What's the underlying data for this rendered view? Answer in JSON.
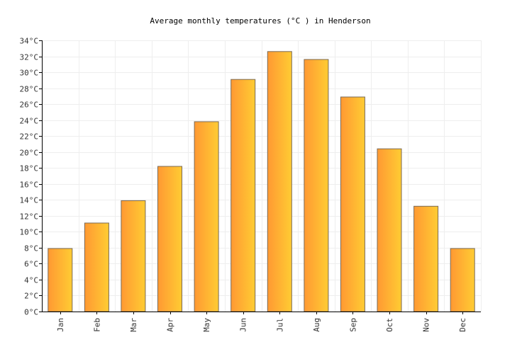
{
  "chart_data": {
    "type": "bar",
    "title": "Average monthly temperatures (°C ) in Henderson",
    "categories": [
      "Jan",
      "Feb",
      "Mar",
      "Apr",
      "May",
      "Jun",
      "Jul",
      "Aug",
      "Sep",
      "Oct",
      "Nov",
      "Dec"
    ],
    "values": [
      7.9,
      11.1,
      13.9,
      18.2,
      23.8,
      29.1,
      32.6,
      31.6,
      26.9,
      20.4,
      13.2,
      7.9
    ],
    "ylim": [
      0,
      34
    ],
    "ytick_step": 2,
    "ytick_suffix": "°C",
    "grid": true,
    "legend": "none",
    "colors": {
      "bar_left": "#ff9933",
      "bar_right": "#ffcc33",
      "bar_stroke": "#7a6a55",
      "grid": "#eeeeee",
      "axis": "#000000"
    }
  }
}
